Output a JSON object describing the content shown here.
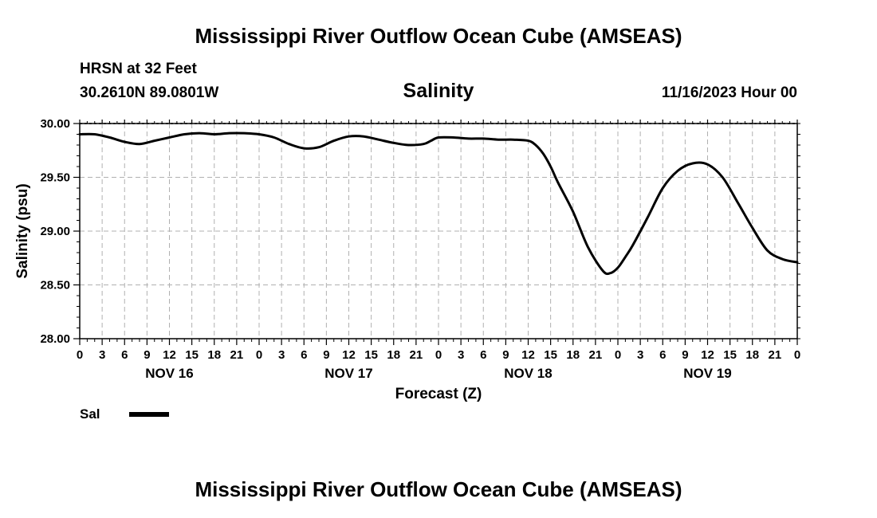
{
  "header": {
    "title": "Mississippi River Outflow Ocean Cube (AMSEAS)",
    "station": "HRSN at 32 Feet",
    "coordinates": "30.2610N  89.0801W",
    "datetime": "11/16/2023 Hour 00"
  },
  "footer": {
    "title": "Mississippi River Outflow Ocean Cube (AMSEAS)"
  },
  "legend": {
    "label": "Sal",
    "color": "#000000"
  },
  "chart_data": {
    "type": "line",
    "title": "Salinity",
    "xlabel": "Forecast (Z)",
    "ylabel": "Salinity (psu)",
    "xlim": [
      0,
      96
    ],
    "ylim": [
      28.0,
      30.0
    ],
    "y_ticks": [
      "28.00",
      "28.50",
      "29.00",
      "29.50",
      "30.00"
    ],
    "y_tick_values": [
      28.0,
      28.5,
      29.0,
      29.5,
      30.0
    ],
    "x_tick_hours": [
      0,
      3,
      6,
      9,
      12,
      15,
      18,
      21,
      24,
      27,
      30,
      33,
      36,
      39,
      42,
      45,
      48,
      51,
      54,
      57,
      60,
      63,
      66,
      69,
      72,
      75,
      78,
      81,
      84,
      87,
      90,
      93,
      96
    ],
    "x_tick_labels": [
      "0",
      "3",
      "6",
      "9",
      "12",
      "15",
      "18",
      "21",
      "0",
      "3",
      "6",
      "9",
      "12",
      "15",
      "18",
      "21",
      "0",
      "3",
      "6",
      "9",
      "12",
      "15",
      "18",
      "21",
      "0",
      "3",
      "6",
      "9",
      "12",
      "15",
      "18",
      "21",
      "0"
    ],
    "day_labels": [
      {
        "hour": 12,
        "label": "NOV 16"
      },
      {
        "hour": 36,
        "label": "NOV 17"
      },
      {
        "hour": 60,
        "label": "NOV 18"
      },
      {
        "hour": 84,
        "label": "NOV 19"
      }
    ],
    "grid": true,
    "series": [
      {
        "name": "Sal",
        "color": "#000000",
        "x": [
          0,
          2,
          4,
          6,
          8,
          10,
          12,
          14,
          16,
          18,
          20,
          22,
          24,
          26,
          28,
          30,
          32,
          34,
          36,
          38,
          40,
          42,
          44,
          46,
          47,
          48,
          50,
          52,
          54,
          56,
          58,
          60,
          61,
          62,
          63,
          64,
          66,
          68,
          70,
          71,
          72,
          73,
          74,
          76,
          78,
          80,
          82,
          84,
          86,
          88,
          90,
          92,
          94,
          96
        ],
        "values": [
          29.9,
          29.9,
          29.87,
          29.83,
          29.81,
          29.84,
          29.87,
          29.9,
          29.91,
          29.9,
          29.91,
          29.91,
          29.9,
          29.87,
          29.81,
          29.77,
          29.78,
          29.84,
          29.88,
          29.88,
          29.85,
          29.82,
          29.8,
          29.81,
          29.84,
          29.87,
          29.87,
          29.86,
          29.86,
          29.85,
          29.85,
          29.84,
          29.8,
          29.72,
          29.6,
          29.45,
          29.18,
          28.85,
          28.63,
          28.61,
          28.66,
          28.76,
          28.87,
          29.13,
          29.4,
          29.56,
          29.63,
          29.62,
          29.5,
          29.27,
          29.03,
          28.82,
          28.74,
          28.71
        ]
      }
    ]
  }
}
